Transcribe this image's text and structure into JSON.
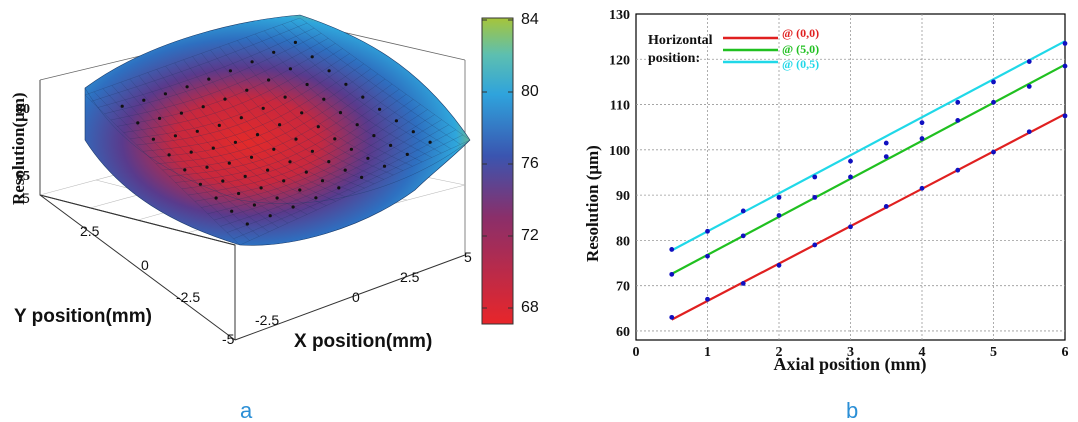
{
  "chart_data": [
    {
      "type": "surface3d",
      "panel_label": "a",
      "xlabel": "X position(mm)",
      "ylabel": "Y position(mm)",
      "zlabel": "Resolution(μm)",
      "x_ticks": [
        "-5",
        "-2.5",
        "0",
        "2.5",
        "5"
      ],
      "y_ticks": [
        "5",
        "2.5",
        "0",
        "-2.5",
        "-5"
      ],
      "z_ticks": [
        "65",
        "80"
      ],
      "colorbar": {
        "ticks": [
          "84",
          "80",
          "76",
          "72",
          "68"
        ],
        "range": [
          67,
          84
        ],
        "colors": [
          "#e8262a",
          "#3a55b0",
          "#2fa3dc",
          "#a6c53a"
        ]
      },
      "xlim": [
        -5,
        5
      ],
      "ylim": [
        -5,
        5
      ]
    },
    {
      "type": "line",
      "panel_label": "b",
      "xlabel": "Axial position (mm)",
      "ylabel": "Resolution (μm)",
      "xlim": [
        0,
        6
      ],
      "ylim": [
        58,
        130
      ],
      "x_ticks": [
        0,
        1,
        2,
        3,
        4,
        5,
        6
      ],
      "y_ticks": [
        60,
        70,
        80,
        90,
        100,
        110,
        120,
        130
      ],
      "grid": true,
      "legend_title": [
        "Horizontal",
        "position:"
      ],
      "legend_placement": "top-left",
      "series": [
        {
          "name": "@ (0,0)",
          "color": "#e02020",
          "x": [
            0.5,
            1,
            1.5,
            2,
            2.5,
            3,
            3.5,
            4,
            4.5,
            5,
            5.5,
            6
          ],
          "y": [
            63,
            67,
            70.5,
            74.5,
            79,
            83,
            87.5,
            91.5,
            95.5,
            99.5,
            104,
            107.5
          ],
          "fit": [
            62.5,
            107.9
          ]
        },
        {
          "name": "@ (5,0)",
          "color": "#20c020",
          "x": [
            0.5,
            1,
            1.5,
            2,
            2.5,
            3,
            3.5,
            4,
            4.5,
            5,
            5.5,
            6
          ],
          "y": [
            72.5,
            76.5,
            81,
            85.5,
            89.5,
            94,
            98.5,
            102.5,
            106.5,
            110.5,
            114,
            118.5
          ],
          "fit": [
            72.6,
            118.8
          ]
        },
        {
          "name": "@ (0,5)",
          "color": "#20d8e8",
          "x": [
            0.5,
            1,
            1.5,
            2,
            2.5,
            3,
            3.5,
            4,
            4.5,
            5,
            5.5,
            6
          ],
          "y": [
            78,
            82,
            86.5,
            89.5,
            94,
            97.5,
            101.5,
            106,
            110.5,
            115,
            119.5,
            123.5
          ],
          "fit": [
            77.8,
            124
          ]
        }
      ]
    }
  ]
}
